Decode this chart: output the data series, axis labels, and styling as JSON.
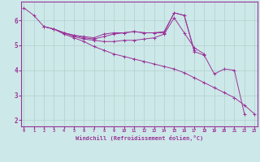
{
  "xlabel": "Windchill (Refroidissement éolien,°C)",
  "bg_color": "#cde8e8",
  "grid_color": "#b0d0cc",
  "line_color": "#993399",
  "lines": [
    {
      "x": [
        0,
        1,
        2,
        3,
        4,
        5,
        6,
        7,
        8,
        9,
        10,
        11,
        12,
        13,
        14,
        15,
        16,
        17,
        18,
        19,
        20,
        21,
        22
      ],
      "y": [
        6.5,
        6.2,
        5.75,
        5.65,
        5.5,
        5.4,
        5.35,
        5.3,
        5.45,
        5.5,
        5.5,
        5.55,
        5.5,
        5.5,
        5.5,
        6.3,
        6.2,
        4.75,
        4.6,
        3.85,
        4.05,
        4.0,
        2.25
      ]
    },
    {
      "x": [
        2,
        3,
        4,
        5,
        6,
        7,
        8,
        9,
        10,
        11,
        12,
        13,
        14,
        15,
        16,
        17
      ],
      "y": [
        5.75,
        5.65,
        5.5,
        5.4,
        5.3,
        5.25,
        5.35,
        5.45,
        5.5,
        5.55,
        5.5,
        5.5,
        5.55,
        6.3,
        6.2,
        4.8
      ]
    },
    {
      "x": [
        2,
        3,
        4,
        5,
        6,
        7,
        8,
        9,
        10,
        11,
        12,
        13,
        14,
        15,
        16,
        17,
        18
      ],
      "y": [
        5.75,
        5.65,
        5.5,
        5.35,
        5.25,
        5.2,
        5.15,
        5.15,
        5.2,
        5.2,
        5.25,
        5.3,
        5.45,
        6.1,
        5.5,
        4.9,
        4.65
      ]
    },
    {
      "x": [
        3,
        4,
        5,
        6,
        7,
        8,
        9,
        10,
        11,
        12,
        13,
        14,
        15,
        16,
        17,
        18,
        19,
        20,
        21,
        22,
        23
      ],
      "y": [
        5.65,
        5.45,
        5.3,
        5.15,
        4.95,
        4.8,
        4.65,
        4.55,
        4.45,
        4.35,
        4.25,
        4.15,
        4.05,
        3.9,
        3.7,
        3.5,
        3.3,
        3.1,
        2.9,
        2.6,
        2.25
      ]
    }
  ],
  "xlim": [
    -0.3,
    23.3
  ],
  "ylim": [
    1.75,
    6.75
  ],
  "xticks": [
    0,
    1,
    2,
    3,
    4,
    5,
    6,
    7,
    8,
    9,
    10,
    11,
    12,
    13,
    14,
    15,
    16,
    17,
    18,
    19,
    20,
    21,
    22,
    23
  ],
  "yticks": [
    2,
    3,
    4,
    5,
    6
  ]
}
